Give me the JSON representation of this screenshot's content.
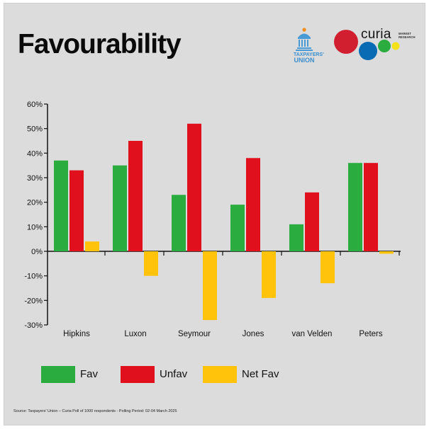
{
  "header": {
    "title": "Favourability",
    "taxpayers_logo_text": [
      "TAXPAYERS'",
      "UNION"
    ],
    "curia_logo_word": "curia",
    "curia_logo_sub": [
      "MARKET",
      "RESEARCH"
    ]
  },
  "colors": {
    "fav": "#2bac3f",
    "unfav": "#e0101c",
    "net_fav": "#ffc30b",
    "axis": "#111111"
  },
  "chart_data": {
    "type": "bar",
    "title": "Favourability",
    "categories": [
      "Hipkins",
      "Luxon",
      "Seymour",
      "Jones",
      "van Velden",
      "Peters"
    ],
    "series": [
      {
        "name": "Fav",
        "values": [
          37,
          35,
          23,
          19,
          11,
          36
        ]
      },
      {
        "name": "Unfav",
        "values": [
          33,
          45,
          52,
          38,
          24,
          36
        ]
      },
      {
        "name": "Net Fav",
        "values": [
          4,
          -10,
          -28,
          -19,
          -13,
          -1
        ]
      }
    ],
    "ylim": [
      -30,
      60
    ],
    "yticks": [
      "60%",
      "50%",
      "40%",
      "30%",
      "20%",
      "10%",
      "0%",
      "-10%",
      "-20%",
      "-30%"
    ],
    "grid": false,
    "legend_position": "bottom-left"
  },
  "legend": [
    {
      "label": "Fav"
    },
    {
      "label": "Unfav"
    },
    {
      "label": "Net Fav"
    }
  ],
  "footer": {
    "source": "Source: Taxpayers' Union – Curia Poll of 1000 respondents - Polling Period: 02-04 March 2025"
  }
}
